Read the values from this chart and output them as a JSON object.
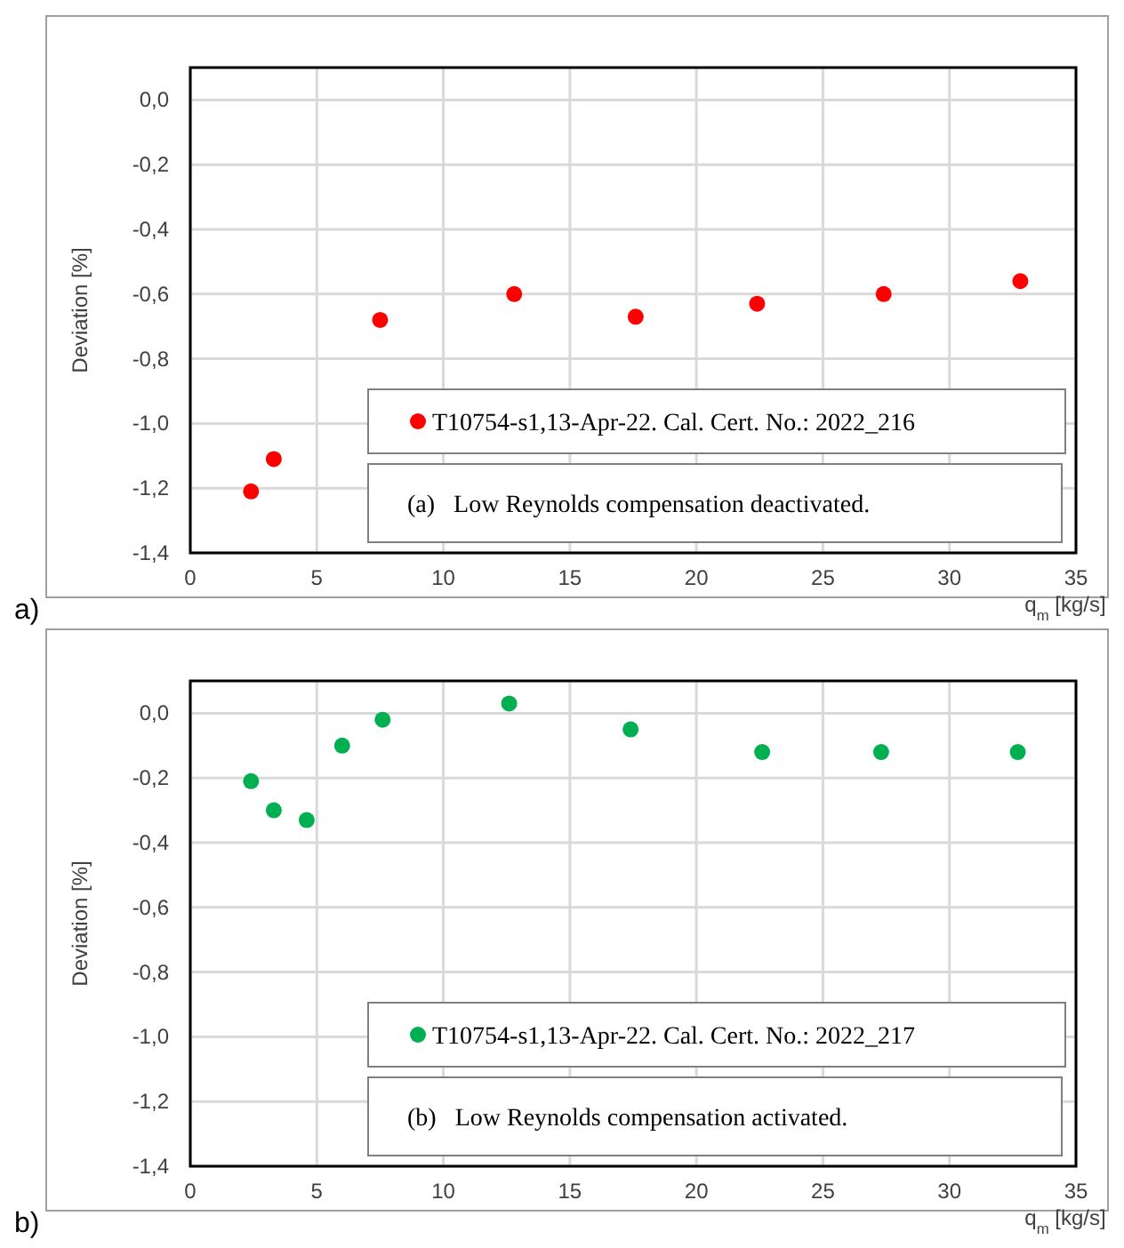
{
  "chart_data": [
    {
      "type": "scatter",
      "xlabel": "q$_{m}$ [kg/s]",
      "ylabel": "Deviation [%]",
      "xlim": [
        0,
        35
      ],
      "xticks": [
        0,
        5,
        10,
        15,
        20,
        25,
        30,
        35
      ],
      "ylim": [
        -1.4,
        0.1
      ],
      "yticks": [
        {
          "value": 0,
          "label": "0,0"
        },
        {
          "value": -0.2,
          "label": "-0,2"
        },
        {
          "value": -0.4,
          "label": "-0,4"
        },
        {
          "value": -0.6,
          "label": "-0,6"
        },
        {
          "value": -0.8,
          "label": "-0,8"
        },
        {
          "value": -1.0,
          "label": "-1,0"
        },
        {
          "value": -1.2,
          "label": "-1,2"
        },
        {
          "value": -1.4,
          "label": "-1,4"
        }
      ],
      "grid": true,
      "legend": "bottom right",
      "marker": "circle",
      "series": [
        {
          "name": "T10754-s1,13-Apr-22. Cal. Cert. No.: 2022_216",
          "color": "#ff0000",
          "x": [
            2.4,
            3.3,
            7.5,
            12.8,
            17.6,
            22.4,
            27.4,
            32.8
          ],
          "values": [
            -1.21,
            -1.11,
            -0.68,
            -0.6,
            -0.67,
            -0.63,
            -0.6,
            -0.56
          ]
        }
      ],
      "annotations": [
        "(a)   Low Reynolds compensation deactivated.",
        "a)"
      ]
    },
    {
      "type": "scatter",
      "xlabel": "q$_{m}$ [kg/s]",
      "ylabel": "Deviation [%]",
      "xlim": [
        0,
        35
      ],
      "xticks": [
        0,
        5,
        10,
        15,
        20,
        25,
        30,
        35
      ],
      "ylim": [
        -1.4,
        0.1
      ],
      "yticks": [
        {
          "value": 0,
          "label": "0,0"
        },
        {
          "value": -0.2,
          "label": "-0,2"
        },
        {
          "value": -0.4,
          "label": "-0,4"
        },
        {
          "value": -0.6,
          "label": "-0,6"
        },
        {
          "value": -0.8,
          "label": "-0,8"
        },
        {
          "value": -1.0,
          "label": "-1,0"
        },
        {
          "value": -1.2,
          "label": "-1,2"
        },
        {
          "value": -1.4,
          "label": "-1,4"
        }
      ],
      "grid": true,
      "legend": "bottom right",
      "marker": "circle",
      "series": [
        {
          "name": "T10754-s1,13-Apr-22. Cal. Cert. No.: 2022_217",
          "color": "#00b050",
          "x": [
            2.4,
            3.3,
            4.6,
            6.0,
            7.6,
            12.6,
            17.4,
            22.6,
            27.3,
            32.7
          ],
          "values": [
            -0.21,
            -0.3,
            -0.33,
            -0.1,
            -0.02,
            0.03,
            -0.05,
            -0.12,
            -0.12,
            -0.12
          ]
        }
      ],
      "annotations": [
        "(b)   Low Reynolds compensation activated.",
        "b)"
      ]
    }
  ]
}
